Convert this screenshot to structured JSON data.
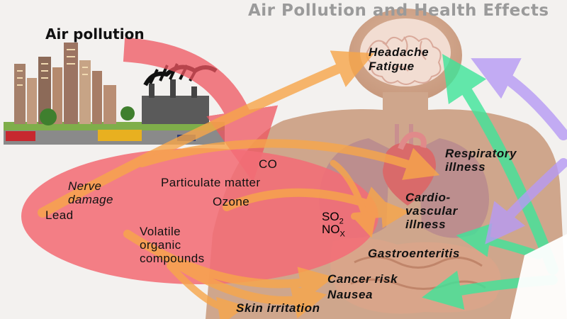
{
  "title": "Air Pollution and Health Effects",
  "source_heading": "Air pollution",
  "pollutants": {
    "co": "CO",
    "particulate": "Particulate matter",
    "ozone": "Ozone",
    "nerve_line1": "Nerve",
    "nerve_line2": "damage",
    "lead": "Lead",
    "voc_line1": "Volatile",
    "voc_line2": "organic",
    "voc_line3": "compounds",
    "so2_base": "SO",
    "so2_sub": "2",
    "nox_base": "NO",
    "nox_sub": "X"
  },
  "effects": {
    "headache": "Headache",
    "fatigue": "Fatigue",
    "respiratory_line1": "Respiratory",
    "respiratory_line2": "illness",
    "cardio_line1": "Cardio-",
    "cardio_line2": "vascular",
    "cardio_line3": "illness",
    "gastro": "Gastroenteritis",
    "cancer": "Cancer risk",
    "nausea": "Nausea",
    "skin": "Skin irritation"
  },
  "colors": {
    "title": "#9a9a9a",
    "ellipse": "#f36d76",
    "arrow_orange": "#f7a64a",
    "arrow_green": "#3fe59a",
    "arrow_purple": "#b79af5",
    "body": "#cfa68c"
  }
}
